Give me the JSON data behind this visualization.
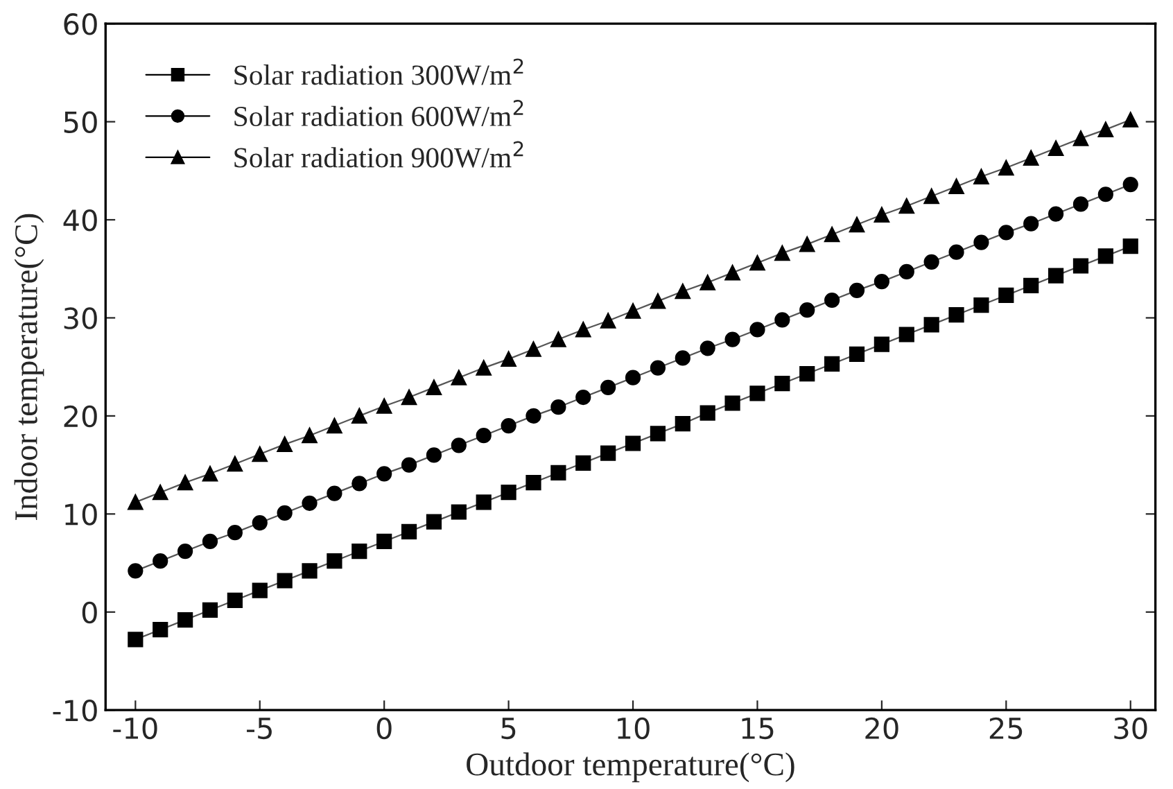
{
  "chart_data": {
    "type": "line",
    "xlabel": "Outdoor temperature(°C)",
    "ylabel": "Indoor temperature(°C)",
    "x": [
      -10,
      -9,
      -8,
      -7,
      -6,
      -5,
      -4,
      -3,
      -2,
      -1,
      0,
      1,
      2,
      3,
      4,
      5,
      6,
      7,
      8,
      9,
      10,
      11,
      12,
      13,
      14,
      15,
      16,
      17,
      18,
      19,
      20,
      21,
      22,
      23,
      24,
      25,
      26,
      27,
      28,
      29,
      30
    ],
    "series": [
      {
        "name": "Solar radiation 300W/m$^{2}$",
        "color": "#000000",
        "marker": "square",
        "values": [
          -2.8,
          -1.8,
          -0.8,
          0.2,
          1.2,
          2.2,
          3.2,
          4.2,
          5.2,
          6.2,
          7.2,
          8.2,
          9.2,
          10.2,
          11.2,
          12.2,
          13.2,
          14.2,
          15.2,
          16.2,
          17.2,
          18.2,
          19.2,
          20.3,
          21.3,
          22.3,
          23.3,
          24.3,
          25.3,
          26.3,
          27.3,
          28.3,
          29.3,
          30.3,
          31.3,
          32.3,
          33.3,
          34.3,
          35.3,
          36.3,
          37.3
        ]
      },
      {
        "name": "Solar radiation 600W/m$^{2}$",
        "color": "#000000",
        "marker": "circle",
        "values": [
          4.2,
          5.2,
          6.2,
          7.2,
          8.1,
          9.1,
          10.1,
          11.1,
          12.1,
          13.1,
          14.1,
          15.0,
          16.0,
          17.0,
          18.0,
          19.0,
          20.0,
          20.9,
          21.9,
          22.9,
          23.9,
          24.9,
          25.9,
          26.9,
          27.8,
          28.8,
          29.8,
          30.8,
          31.8,
          32.8,
          33.7,
          34.7,
          35.7,
          36.7,
          37.7,
          38.7,
          39.6,
          40.6,
          41.6,
          42.6,
          43.6
        ]
      },
      {
        "name": "Solar radiation 900W/m$^{2}$",
        "color": "#000000",
        "marker": "triangle",
        "values": [
          11.2,
          12.2,
          13.2,
          14.1,
          15.1,
          16.1,
          17.1,
          18.0,
          19.0,
          20.0,
          21.0,
          21.9,
          22.9,
          23.9,
          24.9,
          25.8,
          26.8,
          27.8,
          28.8,
          29.7,
          30.7,
          31.7,
          32.7,
          33.6,
          34.6,
          35.6,
          36.6,
          37.5,
          38.5,
          39.5,
          40.5,
          41.4,
          42.4,
          43.4,
          44.4,
          45.3,
          46.3,
          47.3,
          48.3,
          49.2,
          50.2
        ]
      }
    ],
    "xlim": [
      -11.2,
      31.0
    ],
    "ylim": [
      -10,
      60
    ],
    "xticks": [
      -10,
      -5,
      0,
      5,
      10,
      15,
      20,
      25,
      30
    ],
    "yticks": [
      -10,
      0,
      10,
      20,
      30,
      40,
      50,
      60
    ],
    "grid": false,
    "legend": "top left",
    "line_style": "solid"
  }
}
